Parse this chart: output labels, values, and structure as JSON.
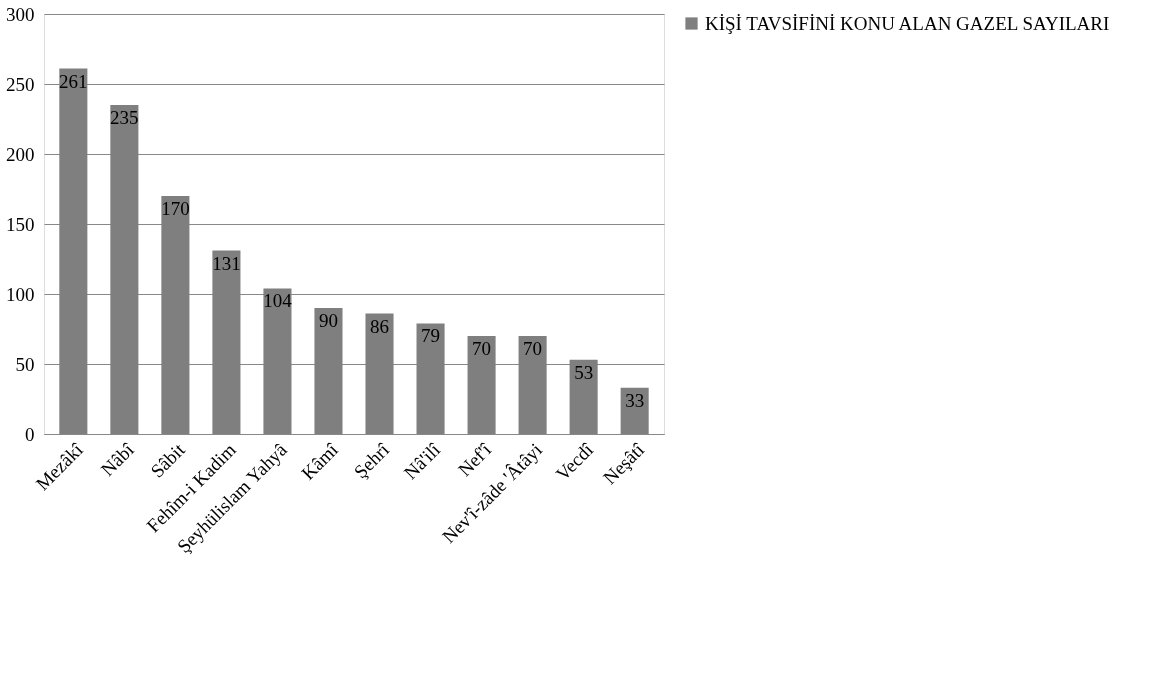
{
  "chart_data": {
    "type": "bar",
    "categories": [
      "Mezâkî",
      "Nâbî",
      "Sâbit",
      "Fehîm-i Kadim",
      "Şeyhülislam Yahyâ",
      "Kâmî",
      "Şehrî",
      "Nâ'ilî",
      "Nef'î",
      "Nev'î-zâde 'Âtâyi",
      "Vecdî",
      "Neşâtî"
    ],
    "series": [
      {
        "name": "KİŞİ TAVSİFİNİ KONU ALAN GAZEL SAYILARI",
        "color": "#7f7f7f",
        "values": [
          261,
          235,
          170,
          131,
          104,
          90,
          86,
          79,
          70,
          70,
          53,
          33
        ]
      }
    ],
    "ylim": [
      0,
      300
    ],
    "yticks": [
      0,
      50,
      100,
      150,
      200,
      250,
      300
    ],
    "grid": "y",
    "legend": "right",
    "data_labels": true
  }
}
